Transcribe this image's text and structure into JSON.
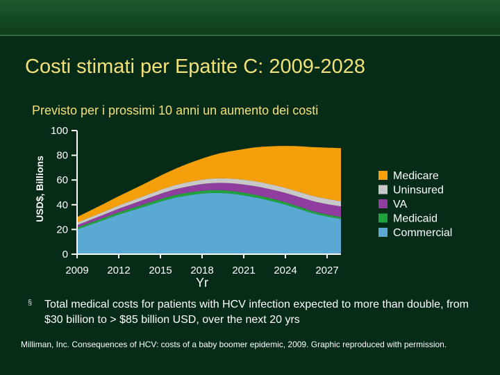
{
  "slide": {
    "title": "Costi stimati per Epatite C: 2009-2028",
    "bullet_marker": "§",
    "bullet_text": "Total medical costs for patients with HCV infection expected to more than double, from $30 billion to > $85 billion USD, over the next 20 yrs",
    "source": "Milliman, Inc. Consequences of HCV: costs of a baby boomer epidemic, 2009. Graphic reproduced with permission."
  },
  "chart_data": {
    "type": "area",
    "stacked": true,
    "title": "Previsto per i prossimi 10 anni un aumento dei costi",
    "xlabel": "Yr",
    "ylabel": "USD$, Billions",
    "ylim": [
      0,
      100
    ],
    "yticks": [
      0,
      20,
      40,
      60,
      80,
      100
    ],
    "xlim": [
      2009,
      2028
    ],
    "xticks": [
      2009,
      2012,
      2015,
      2018,
      2021,
      2024,
      2027
    ],
    "x": [
      2009,
      2010,
      2011,
      2012,
      2013,
      2014,
      2015,
      2016,
      2017,
      2018,
      2019,
      2020,
      2021,
      2022,
      2023,
      2024,
      2025,
      2026,
      2027,
      2028
    ],
    "legend_position": "right",
    "series": [
      {
        "name": "Commercial",
        "color": "#5aa9d2",
        "values": [
          20,
          24,
          28,
          32,
          35.5,
          39,
          42.5,
          45.5,
          47.5,
          49,
          49.5,
          49,
          47.5,
          45.5,
          43,
          40,
          36.5,
          33,
          30.5,
          28.5
        ]
      },
      {
        "name": "Medicaid",
        "color": "#22a23d",
        "values": [
          1.5,
          1.6,
          1.7,
          1.8,
          1.9,
          2.0,
          2.1,
          2.2,
          2.3,
          2.3,
          2.3,
          2.2,
          2.2,
          2.1,
          2.0,
          1.9,
          1.8,
          1.7,
          1.6,
          1.5
        ]
      },
      {
        "name": "VA",
        "color": "#8f3ea0",
        "values": [
          2.0,
          2.3,
          2.6,
          3.0,
          3.4,
          3.8,
          4.2,
          4.6,
          5.0,
          5.4,
          5.8,
          6.2,
          6.6,
          7.0,
          7.3,
          7.6,
          7.9,
          8.2,
          8.4,
          8.6
        ]
      },
      {
        "name": "Uninsured",
        "color": "#c8c8c8",
        "values": [
          2.0,
          2.2,
          2.4,
          2.6,
          2.8,
          3.0,
          3.2,
          3.4,
          3.5,
          3.6,
          3.7,
          3.8,
          3.9,
          4.0,
          4.0,
          4.1,
          4.1,
          4.2,
          4.2,
          4.2
        ]
      },
      {
        "name": "Medicare",
        "color": "#f5a00a",
        "values": [
          4.5,
          5.5,
          6.5,
          7.5,
          8.7,
          10.0,
          11.5,
          13.0,
          15.0,
          17.0,
          19.5,
          22.0,
          24.8,
          28.0,
          31.0,
          34.0,
          37.0,
          39.5,
          41.5,
          43.0
        ]
      }
    ],
    "legend": [
      "Medicare",
      "Uninsured",
      "VA",
      "Medicaid",
      "Commercial"
    ]
  }
}
